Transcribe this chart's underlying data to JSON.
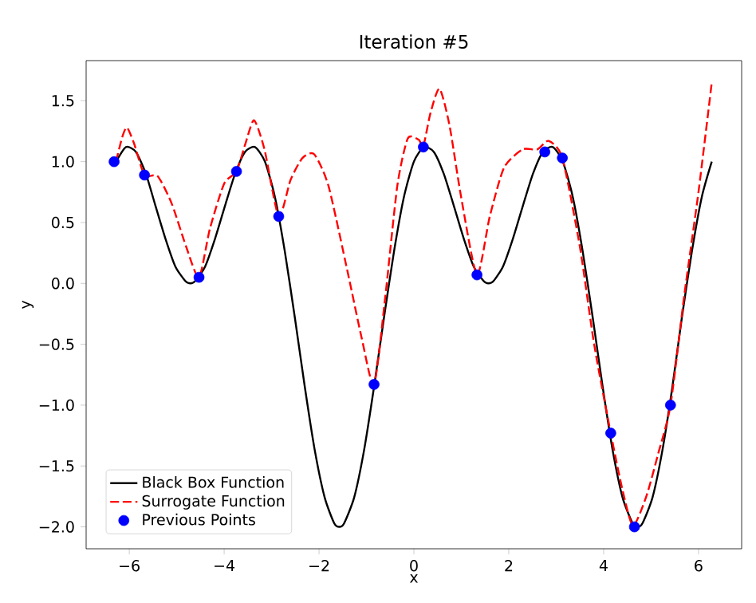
{
  "chart_data": {
    "type": "line",
    "title": "Iteration #5",
    "xlabel": "x",
    "ylabel": "y",
    "legend": "bottom left",
    "xlim": [
      -6.91,
      6.91
    ],
    "ylim": [
      -2.18,
      1.83
    ],
    "xticks": [
      {
        "value": -6,
        "label": "−6"
      },
      {
        "value": -4,
        "label": "−4"
      },
      {
        "value": -2,
        "label": "−2"
      },
      0,
      2,
      4,
      6
    ],
    "yticks": [
      {
        "value": -2,
        "label": "−2.0"
      },
      {
        "value": -1.5,
        "label": "−1.5"
      },
      {
        "value": -1,
        "label": "−1.0"
      },
      {
        "value": -0.5,
        "label": "−0.5"
      },
      {
        "value": 0,
        "label": "0.0"
      },
      {
        "value": 0.5,
        "label": "0.5"
      },
      {
        "value": 1,
        "label": "1.0"
      },
      {
        "value": 1.5,
        "label": "1.5"
      }
    ],
    "series": [
      {
        "name": "Black Box Function",
        "color": "#000000",
        "line_style": "solid",
        "marker": "none",
        "x": [
          -6.28,
          -6.07,
          -5.86,
          -5.65,
          -5.45,
          -5.24,
          -5.03,
          -4.82,
          -4.71,
          -4.61,
          -4.4,
          -4.19,
          -3.98,
          -3.77,
          -3.56,
          -3.35,
          -3.14,
          -2.93,
          -2.72,
          -2.51,
          -2.3,
          -2.09,
          -1.88,
          -1.68,
          -1.57,
          -1.47,
          -1.26,
          -1.05,
          -0.84,
          -0.63,
          -0.42,
          -0.21,
          0,
          0.21,
          0.42,
          0.63,
          0.84,
          1.05,
          1.26,
          1.47,
          1.57,
          1.68,
          1.88,
          2.09,
          2.3,
          2.51,
          2.72,
          2.93,
          3.14,
          3.35,
          3.56,
          3.77,
          3.98,
          4.19,
          4.4,
          4.61,
          4.71,
          4.82,
          5.03,
          5.24,
          5.45,
          5.65,
          5.86,
          6.07,
          6.28
        ],
        "values": [
          1.0,
          1.12,
          1.08,
          0.9,
          0.64,
          0.37,
          0.14,
          0.02,
          0.0,
          0.02,
          0.14,
          0.37,
          0.64,
          0.9,
          1.08,
          1.12,
          1.0,
          0.71,
          0.26,
          -0.28,
          -0.85,
          -1.37,
          -1.76,
          -1.97,
          -2.0,
          -1.97,
          -1.76,
          -1.37,
          -0.85,
          -0.28,
          0.26,
          0.71,
          1.0,
          1.12,
          1.08,
          0.9,
          0.64,
          0.37,
          0.14,
          0.02,
          0.0,
          0.02,
          0.14,
          0.37,
          0.64,
          0.9,
          1.08,
          1.12,
          1.0,
          0.71,
          0.26,
          -0.28,
          -0.85,
          -1.37,
          -1.76,
          -1.97,
          -2.0,
          -1.97,
          -1.76,
          -1.37,
          -0.85,
          -0.28,
          0.26,
          0.71,
          1.0
        ]
      },
      {
        "name": "Surrogate Function",
        "color": "#ff0000",
        "line_style": "dashed",
        "marker": "none",
        "x": [
          -6.28,
          -6.15,
          -6.05,
          -5.9,
          -5.68,
          -5.4,
          -5.1,
          -4.8,
          -4.53,
          -4.3,
          -4.0,
          -3.74,
          -3.55,
          -3.37,
          -3.15,
          -2.85,
          -2.6,
          -2.35,
          -2.1,
          -1.8,
          -1.4,
          -1.1,
          -0.84,
          -0.6,
          -0.35,
          -0.13,
          0.1,
          0.2,
          0.35,
          0.54,
          0.75,
          1.0,
          1.33,
          1.6,
          1.9,
          2.29,
          2.6,
          2.84,
          3.13,
          3.5,
          3.8,
          4.15,
          4.4,
          4.62,
          4.9,
          5.15,
          5.41,
          5.7,
          6.0,
          6.28
        ],
        "values": [
          1.0,
          1.2,
          1.28,
          1.15,
          0.89,
          0.88,
          0.65,
          0.3,
          0.05,
          0.45,
          0.82,
          0.92,
          1.15,
          1.34,
          1.1,
          0.55,
          0.85,
          1.03,
          1.06,
          0.8,
          0.1,
          -0.45,
          -0.83,
          -0.1,
          0.8,
          1.19,
          1.18,
          1.13,
          1.4,
          1.6,
          1.3,
          0.7,
          0.07,
          0.55,
          0.95,
          1.1,
          1.1,
          1.17,
          1.03,
          0.3,
          -0.5,
          -1.23,
          -1.7,
          -1.99,
          -1.75,
          -1.4,
          -1.0,
          -0.1,
          0.75,
          1.65
        ]
      },
      {
        "name": "Previous Points",
        "type": "scatter",
        "color": "#0000ff",
        "marker": "circle",
        "x": [
          -6.32,
          -5.68,
          -4.53,
          -3.74,
          -2.85,
          -0.84,
          0.2,
          1.33,
          2.76,
          3.13,
          4.15,
          4.65,
          5.41
        ],
        "values": [
          1.0,
          0.89,
          0.05,
          0.92,
          0.55,
          -0.83,
          1.12,
          0.07,
          1.08,
          1.03,
          -1.23,
          -2.0,
          -1.0
        ]
      }
    ]
  }
}
